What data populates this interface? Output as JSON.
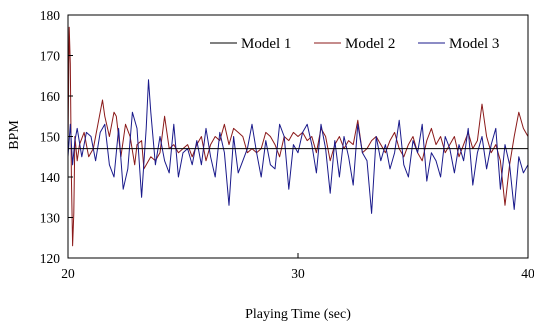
{
  "chart_data": {
    "type": "line",
    "xlabel": "Playing Time (sec)",
    "ylabel": "BPM",
    "xlim": [
      20,
      40
    ],
    "ylim": [
      120,
      180
    ],
    "x_ticks": [
      20,
      30,
      40
    ],
    "y_ticks": [
      120,
      130,
      140,
      150,
      160,
      170,
      180
    ],
    "grid": false,
    "legend_position": "top-right",
    "series": [
      {
        "name": "Model 1",
        "color": "#000000",
        "x": [
          20,
          40
        ],
        "y": [
          147,
          147
        ]
      },
      {
        "name": "Model 2",
        "color": "#8b1a1a",
        "x": [
          20.0,
          20.05,
          20.1,
          20.15,
          20.2,
          20.25,
          20.3,
          20.4,
          20.5,
          20.7,
          20.9,
          21.1,
          21.3,
          21.5,
          21.6,
          21.8,
          22.0,
          22.1,
          22.3,
          22.5,
          22.7,
          22.9,
          23.0,
          23.2,
          23.3,
          23.6,
          23.8,
          24.0,
          24.2,
          24.4,
          24.6,
          24.8,
          25.0,
          25.2,
          25.4,
          25.6,
          25.8,
          26.0,
          26.2,
          26.4,
          26.6,
          26.8,
          27.0,
          27.2,
          27.4,
          27.6,
          27.8,
          28.0,
          28.2,
          28.4,
          28.6,
          28.8,
          29.0,
          29.2,
          29.4,
          29.6,
          29.8,
          30.0,
          30.2,
          30.4,
          30.6,
          30.8,
          31.0,
          31.2,
          31.4,
          31.6,
          31.8,
          32.0,
          32.2,
          32.4,
          32.6,
          32.8,
          33.0,
          33.2,
          33.4,
          33.6,
          33.8,
          34.0,
          34.2,
          34.4,
          34.6,
          34.8,
          35.0,
          35.2,
          35.4,
          35.6,
          35.8,
          36.0,
          36.2,
          36.4,
          36.6,
          36.8,
          37.0,
          37.2,
          37.4,
          37.6,
          37.8,
          38.0,
          38.2,
          38.4,
          38.6,
          38.8,
          39.0,
          39.2,
          39.4,
          39.6,
          39.8,
          40.0
        ],
        "y": [
          148,
          177,
          168,
          140,
          123,
          131,
          150,
          144,
          148,
          151,
          145,
          147,
          153,
          159,
          155,
          150,
          156,
          155,
          145,
          153,
          150,
          143,
          148,
          149,
          142,
          145,
          144,
          146,
          155,
          147,
          148,
          146,
          147,
          148,
          145,
          148,
          150,
          144,
          148,
          150,
          149,
          153,
          148,
          152,
          151,
          150,
          146,
          147,
          146,
          147,
          151,
          150,
          148,
          145,
          150,
          149,
          151,
          150,
          151,
          149,
          150,
          146,
          152,
          150,
          144,
          148,
          150,
          147,
          149,
          148,
          154,
          146,
          147,
          149,
          150,
          148,
          146,
          149,
          151,
          147,
          145,
          148,
          150,
          146,
          144,
          149,
          152,
          148,
          150,
          146,
          148,
          150,
          145,
          148,
          151,
          147,
          149,
          158,
          150,
          146,
          148,
          144,
          133,
          143,
          150,
          156,
          152,
          150
        ]
      },
      {
        "name": "Model 3",
        "color": "#1a1a8b",
        "x": [
          20.0,
          20.1,
          20.2,
          20.3,
          20.4,
          20.6,
          20.8,
          21.0,
          21.2,
          21.4,
          21.6,
          21.8,
          22.0,
          22.2,
          22.4,
          22.6,
          22.8,
          23.0,
          23.2,
          23.4,
          23.5,
          23.6,
          23.8,
          24.0,
          24.2,
          24.4,
          24.6,
          24.8,
          25.0,
          25.2,
          25.4,
          25.6,
          25.8,
          26.0,
          26.2,
          26.4,
          26.6,
          26.8,
          27.0,
          27.2,
          27.4,
          27.6,
          27.8,
          28.0,
          28.2,
          28.4,
          28.6,
          28.8,
          29.0,
          29.2,
          29.4,
          29.6,
          29.8,
          30.0,
          30.2,
          30.4,
          30.6,
          30.8,
          31.0,
          31.2,
          31.4,
          31.6,
          31.8,
          32.0,
          32.2,
          32.4,
          32.6,
          32.8,
          33.0,
          33.2,
          33.4,
          33.6,
          33.8,
          34.0,
          34.2,
          34.4,
          34.6,
          34.8,
          35.0,
          35.2,
          35.4,
          35.6,
          35.8,
          36.0,
          36.2,
          36.4,
          36.6,
          36.8,
          37.0,
          37.2,
          37.4,
          37.6,
          37.8,
          38.0,
          38.2,
          38.4,
          38.6,
          38.8,
          39.0,
          39.2,
          39.4,
          39.6,
          39.8,
          40.0
        ],
        "y": [
          145,
          153,
          143,
          149,
          152,
          145,
          151,
          150,
          144,
          151,
          153,
          143,
          140,
          152,
          137,
          142,
          156,
          152,
          135,
          152,
          164,
          156,
          143,
          150,
          144,
          141,
          153,
          140,
          146,
          147,
          143,
          149,
          143,
          152,
          145,
          140,
          151,
          146,
          133,
          150,
          141,
          144,
          147,
          153,
          146,
          140,
          149,
          143,
          142,
          153,
          150,
          137,
          148,
          146,
          151,
          153,
          148,
          141,
          153,
          147,
          136,
          149,
          140,
          150,
          145,
          138,
          153,
          146,
          144,
          131,
          150,
          144,
          148,
          142,
          146,
          154,
          143,
          140,
          149,
          146,
          153,
          139,
          146,
          144,
          140,
          150,
          147,
          141,
          148,
          144,
          152,
          138,
          146,
          150,
          142,
          148,
          152,
          137,
          148,
          143,
          132,
          145,
          141,
          143
        ]
      }
    ]
  }
}
